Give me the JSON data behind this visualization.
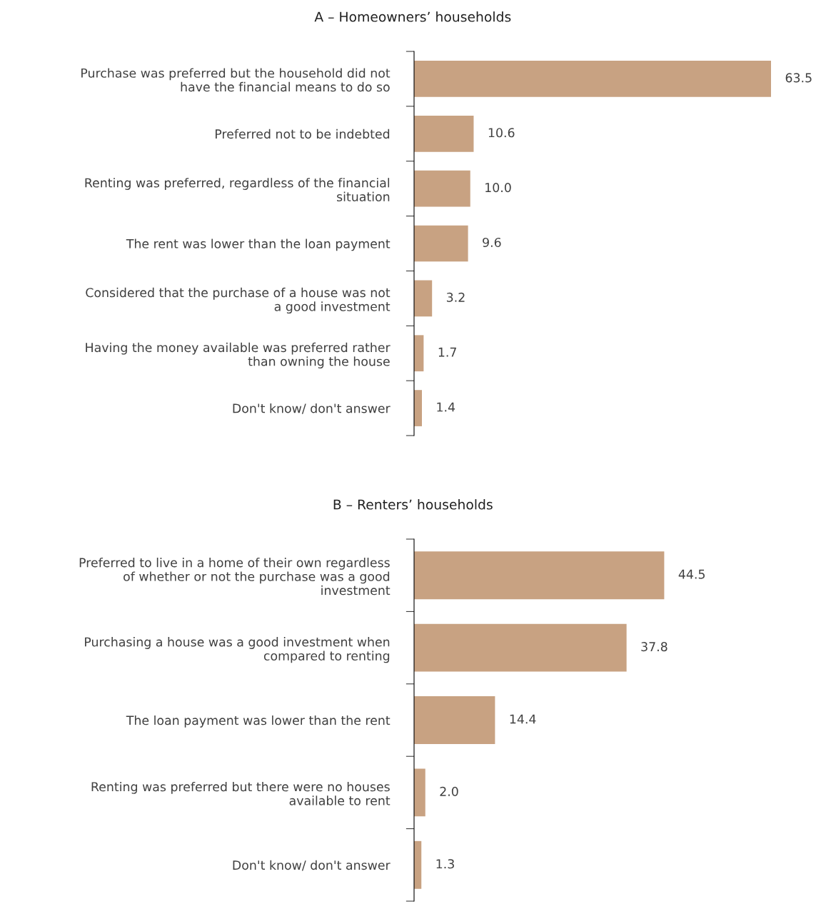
{
  "chart_data": [
    {
      "type": "bar",
      "orientation": "horizontal",
      "title": "A – Homeowners’ households",
      "color": "#c8a282",
      "value_labels": [
        "63.5",
        "10.6",
        "10.0",
        "9.6",
        "3.2",
        "1.7",
        "1.4"
      ],
      "categories": [
        "Purchase was preferred but the household did not\nhave the financial means to do so",
        "Preferred not to be indebted",
        "Renting was preferred, regardless of the financial\nsituation",
        "The rent was lower than the loan payment",
        "Considered that the purchase of a house was not\na good investment",
        "Having the money available was preferred rather\nthan owning the house",
        "Don't know/ don't answer"
      ],
      "values": [
        63.5,
        10.6,
        10.0,
        9.6,
        3.2,
        1.7,
        1.4
      ]
    },
    {
      "type": "bar",
      "orientation": "horizontal",
      "title": "B – Renters’ households",
      "color": "#c8a282",
      "value_labels": [
        "44.5",
        "37.8",
        "14.4",
        "2.0",
        "1.3"
      ],
      "categories": [
        "Preferred to live in a home of their own regardless\nof whether or not the purchase was a good\ninvestment",
        "Purchasing a house was a good investment when\ncompared to renting",
        "The loan payment was lower than the rent",
        "Renting was preferred but there were no houses\navailable to rent",
        "Don't know/ don't answer"
      ],
      "values": [
        44.5,
        37.8,
        14.4,
        2.0,
        1.3
      ]
    }
  ]
}
